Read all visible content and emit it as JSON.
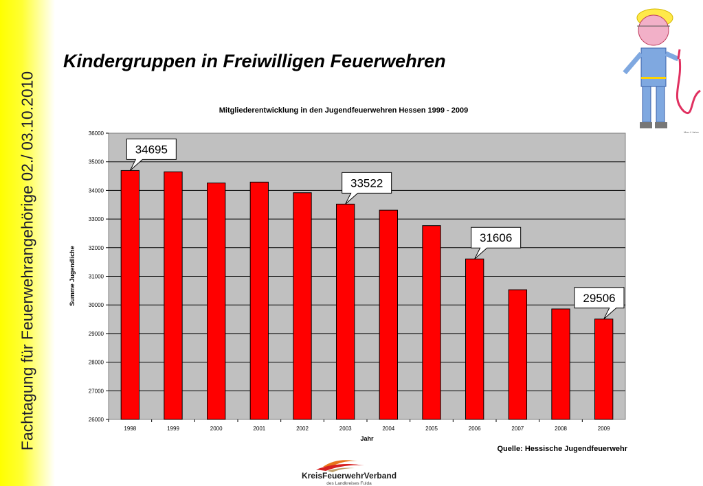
{
  "slide": {
    "title": "Kindergruppen in Freiwilligen Feuerwehren",
    "side_text": "Fachtagung für Feuerwehrangehörige 02./ 03.10.2010",
    "source": "Quelle: Hessische Jugendfeuerwehr",
    "logo_text": "KreisFeuerwehrVerband",
    "logo_subtext": "des Landkreises Fulda",
    "drawing_caption": "Max 4 Jahre"
  },
  "colors": {
    "bar": "#ff0000",
    "plot_bg": "#c0c0c0",
    "side_band": "#ffff00"
  },
  "chart_data": {
    "type": "bar",
    "title": "Mitgliederentwicklung in den Jugendfeuerwehren Hessen 1999 - 2009",
    "xlabel": "Jahr",
    "ylabel": "Summe Jugendliche",
    "ylim": [
      26000,
      36000
    ],
    "yticks": [
      26000,
      27000,
      28000,
      29000,
      30000,
      31000,
      32000,
      33000,
      34000,
      35000,
      36000
    ],
    "grid": true,
    "categories": [
      "1998",
      "1999",
      "2000",
      "2001",
      "2002",
      "2003",
      "2004",
      "2005",
      "2006",
      "2007",
      "2008",
      "2009"
    ],
    "values": [
      34695,
      34650,
      34260,
      34290,
      33920,
      33522,
      33310,
      32770,
      31606,
      30530,
      29860,
      29506
    ],
    "callouts": [
      {
        "category": "1998",
        "label": "34695"
      },
      {
        "category": "2003",
        "label": "33522"
      },
      {
        "category": "2006",
        "label": "31606"
      },
      {
        "category": "2009",
        "label": "29506"
      }
    ]
  }
}
